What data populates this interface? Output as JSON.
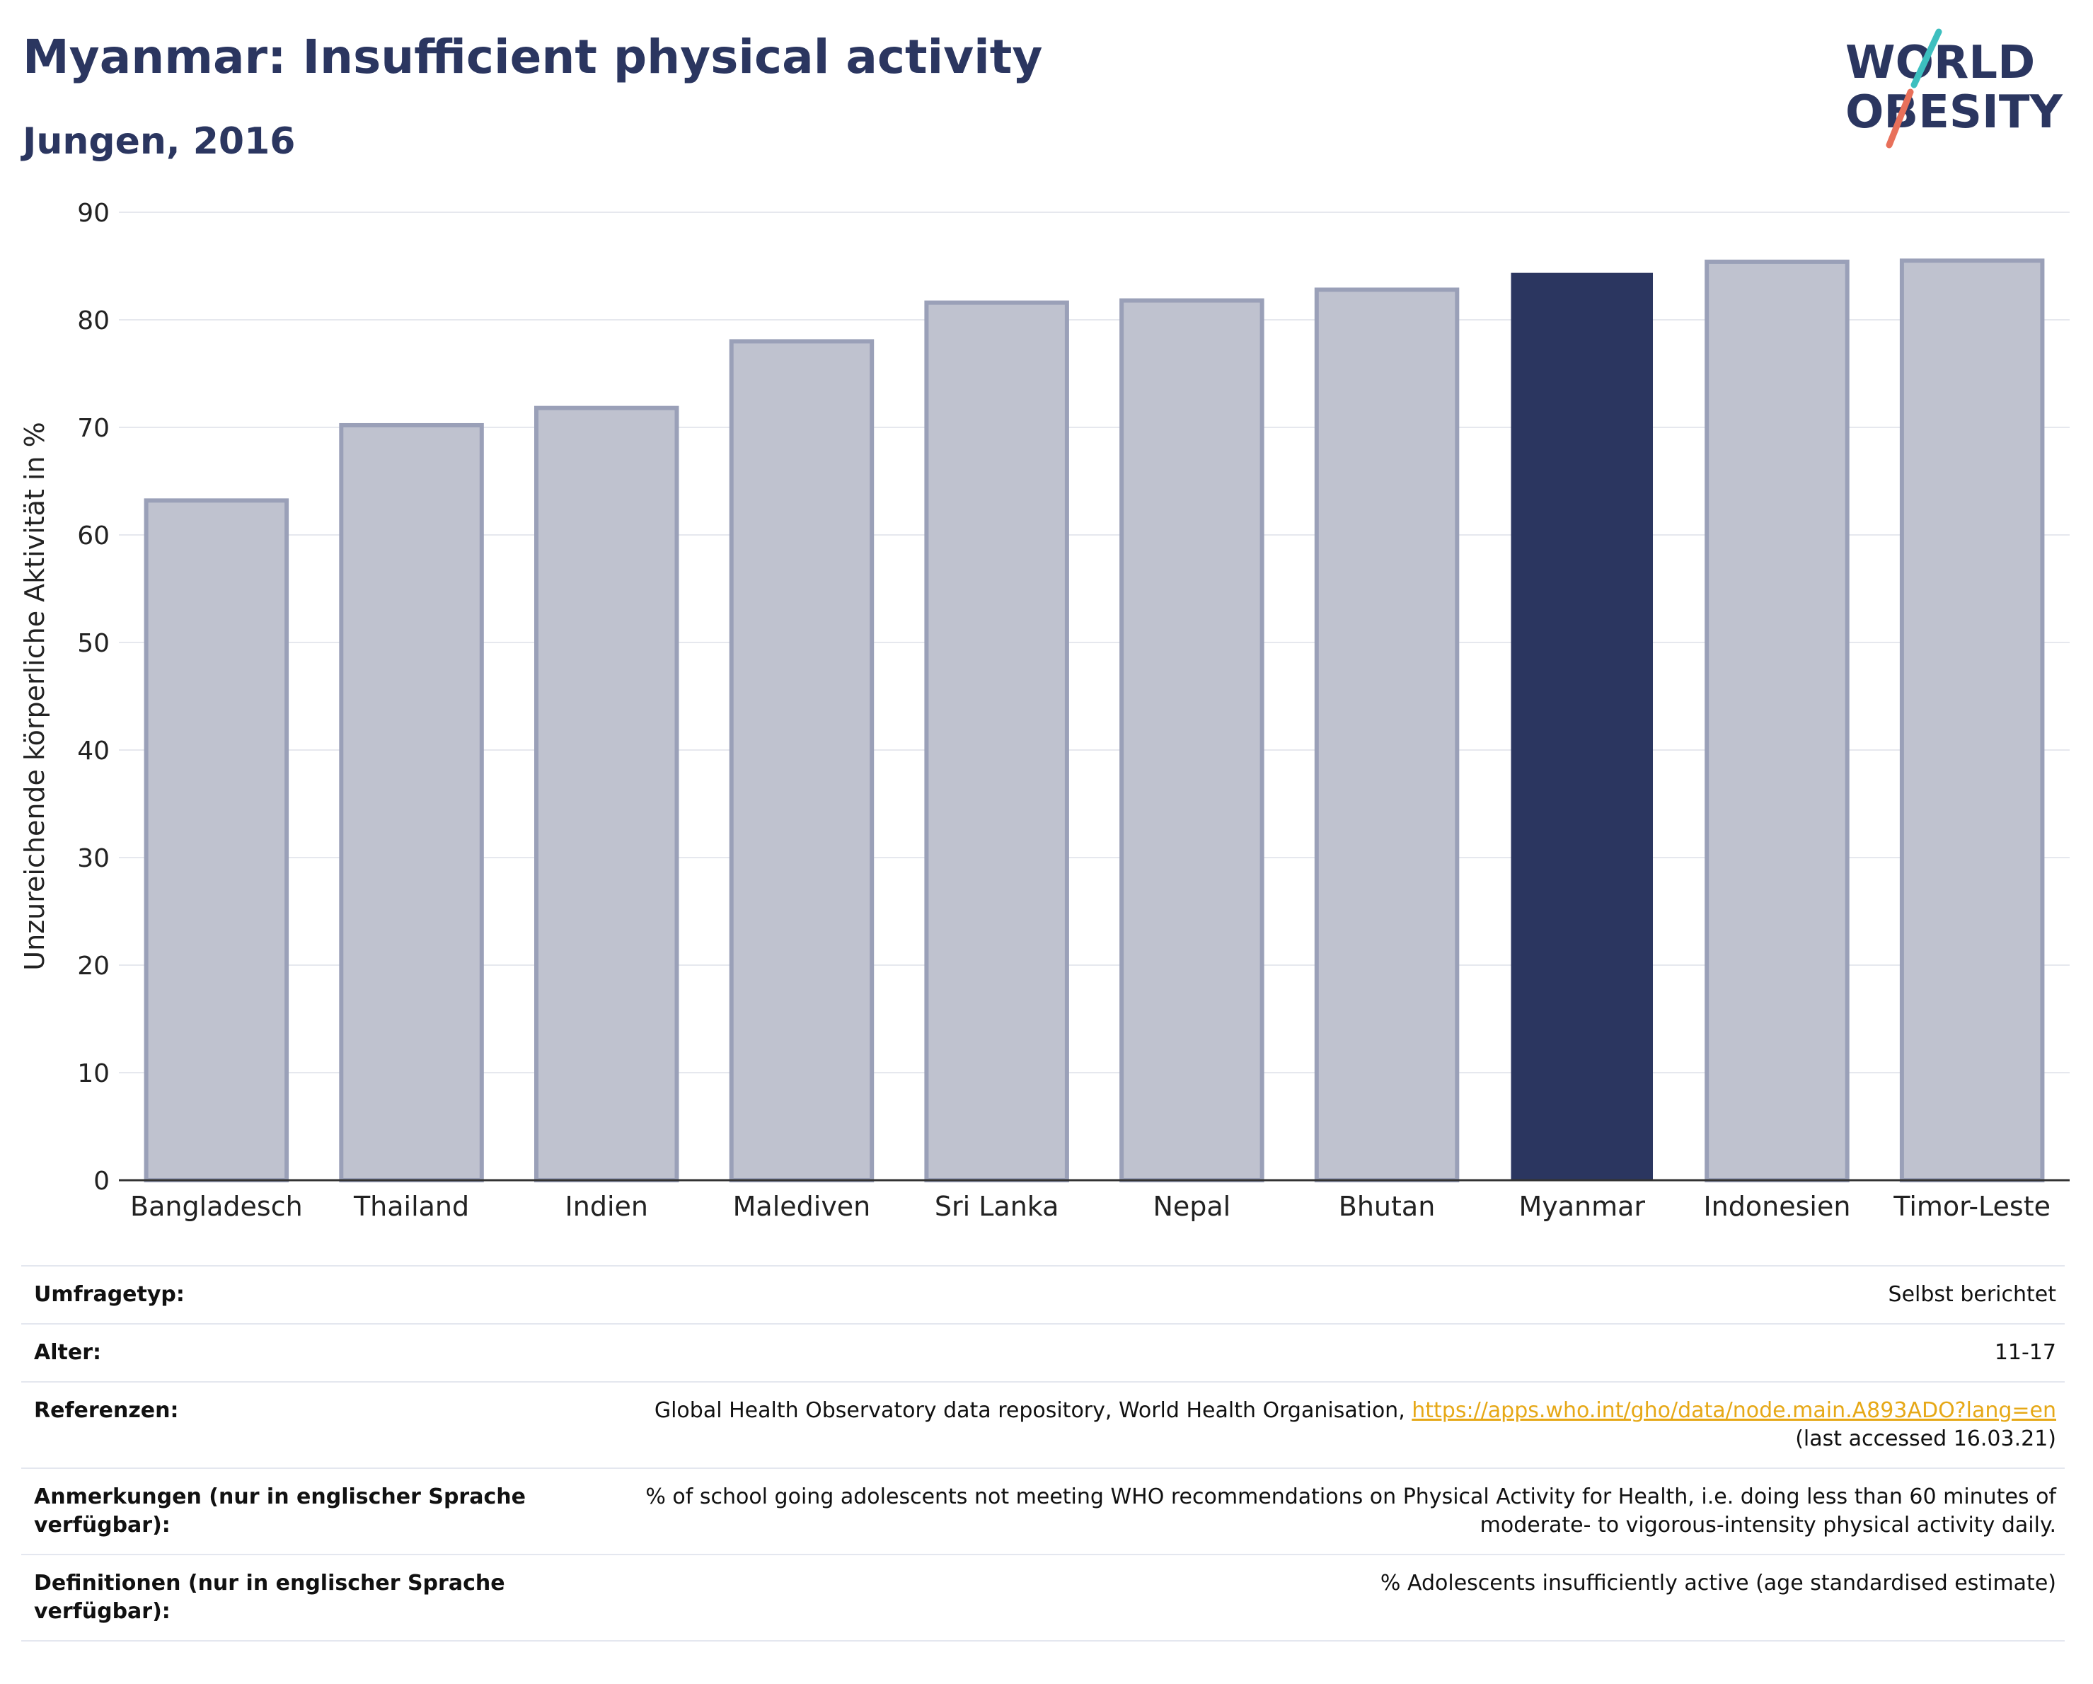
{
  "header": {
    "title": "Myanmar: Insufficient physical activity",
    "subtitle": "Jungen, 2016"
  },
  "logo": {
    "line1": "WORLD",
    "line2": "OBESITY",
    "accent1": "#3dbfbf",
    "accent2": "#e8705a"
  },
  "colors": {
    "bar": "#bfc2cf",
    "bar_stroke": "#9aa0b8",
    "highlight": "#2b3660",
    "grid": "#e6e8ee"
  },
  "chart_data": {
    "type": "bar",
    "categories": [
      "Bangladesch",
      "Thailand",
      "Indien",
      "Malediven",
      "Sri Lanka",
      "Nepal",
      "Bhutan",
      "Myanmar",
      "Indonesien",
      "Timor-Leste"
    ],
    "values": [
      63.2,
      70.2,
      71.8,
      78.0,
      81.6,
      81.8,
      82.8,
      84.3,
      85.4,
      85.5
    ],
    "highlight": "Myanmar",
    "ylabel": "Unzureichende körperliche Aktivität in %",
    "ylim": [
      0,
      90
    ],
    "yticks": [
      0,
      10,
      20,
      30,
      40,
      50,
      60,
      70,
      80,
      90
    ],
    "grid": true
  },
  "info": {
    "rows": [
      {
        "label": "Umfragetyp:",
        "value": "Selbst berichtet"
      },
      {
        "label": "Alter:",
        "value": "11-17"
      },
      {
        "label": "Referenzen:",
        "value": "Global Health Observatory data repository, World Health Organisation, ",
        "link": "https://apps.who.int/gho/data/node.main.A893ADO?lang=en",
        "value2": "(last accessed 16.03.21)"
      },
      {
        "label": "Anmerkungen (nur in englischer Sprache verfügbar):",
        "value": "% of school going adolescents not meeting WHO recommendations on Physical Activity for Health, i.e. doing less than 60 minutes of moderate- to vigorous-intensity physical activity daily."
      },
      {
        "label": "Definitionen (nur in englischer Sprache verfügbar):",
        "value": "% Adolescents insufficiently active (age standardised estimate)"
      }
    ]
  }
}
